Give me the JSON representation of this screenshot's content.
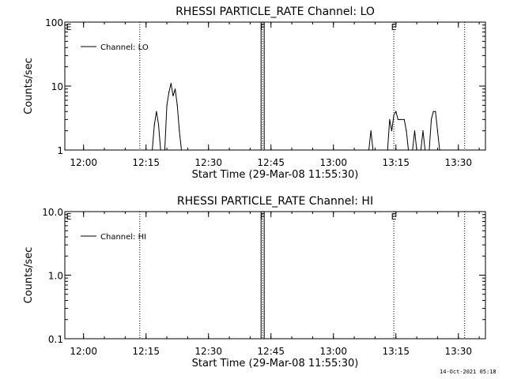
{
  "footer": {
    "timestamp": "14-Oct-2021 05:18"
  },
  "chart_data": [
    {
      "type": "line",
      "title": "RHESSI PARTICLE_RATE Channel: LO",
      "xlabel": "Start Time (29-Mar-08 11:55:30)",
      "ylabel": "Counts/sec",
      "yscale": "log",
      "xlim": [
        "11:55:30",
        "13:36:30"
      ],
      "ylim": [
        1,
        100
      ],
      "x_ticks": [
        "12:00",
        "12:15",
        "12:30",
        "12:45",
        "13:00",
        "13:15",
        "13:30"
      ],
      "y_ticks": [
        "1",
        "10",
        "100"
      ],
      "legend": {
        "position": "top-left",
        "entries": [
          "Channel: LO"
        ]
      },
      "series": [
        {
          "name": "Channel: LO",
          "points": [
            [
              "12:16:30",
              1
            ],
            [
              "12:17:00",
              2.5
            ],
            [
              "12:17:30",
              4
            ],
            [
              "12:18:00",
              2.5
            ],
            [
              "12:18:30",
              1
            ],
            [
              "12:19:30",
              1
            ],
            [
              "12:20:00",
              5
            ],
            [
              "12:20:30",
              8
            ],
            [
              "12:21:00",
              11
            ],
            [
              "12:21:30",
              7
            ],
            [
              "12:22:00",
              9
            ],
            [
              "12:22:30",
              5
            ],
            [
              "12:23:00",
              2
            ],
            [
              "12:23:30",
              1
            ],
            [
              "13:08:30",
              1
            ],
            [
              "13:09:00",
              2
            ],
            [
              "13:09:30",
              1
            ],
            [
              "13:13:00",
              1
            ],
            [
              "13:13:30",
              3
            ],
            [
              "13:14:00",
              2
            ],
            [
              "13:14:30",
              3.5
            ],
            [
              "13:15:00",
              4
            ],
            [
              "13:15:30",
              3
            ],
            [
              "13:16:00",
              3
            ],
            [
              "13:17:00",
              3
            ],
            [
              "13:17:30",
              2
            ],
            [
              "13:18:00",
              1
            ],
            [
              "13:19:00",
              1
            ],
            [
              "13:19:30",
              2
            ],
            [
              "13:20:00",
              1
            ],
            [
              "13:21:00",
              1
            ],
            [
              "13:21:30",
              2
            ],
            [
              "13:22:00",
              1
            ],
            [
              "13:23:00",
              1
            ],
            [
              "13:23:30",
              3
            ],
            [
              "13:24:00",
              4
            ],
            [
              "13:24:30",
              4
            ],
            [
              "13:25:00",
              2
            ],
            [
              "13:25:30",
              1
            ]
          ]
        }
      ],
      "markers": [
        {
          "time": "12:13:30",
          "label": ""
        },
        {
          "time": "12:43:00",
          "label": "F"
        },
        {
          "time": "13:14:30",
          "label": "E"
        },
        {
          "time": "13:31:30",
          "label": ""
        }
      ],
      "edge_label": "E"
    },
    {
      "type": "line",
      "title": "RHESSI PARTICLE_RATE Channel: HI",
      "xlabel": "Start Time (29-Mar-08 11:55:30)",
      "ylabel": "Counts/sec",
      "yscale": "log",
      "xlim": [
        "11:55:30",
        "13:36:30"
      ],
      "ylim": [
        0.1,
        10
      ],
      "x_ticks": [
        "12:00",
        "12:15",
        "12:30",
        "12:45",
        "13:00",
        "13:15",
        "13:30"
      ],
      "y_ticks": [
        "0.1",
        "1.0",
        "10.0"
      ],
      "legend": {
        "position": "top-left",
        "entries": [
          "Channel: HI"
        ]
      },
      "series": [
        {
          "name": "Channel: HI",
          "points": []
        }
      ],
      "markers": [
        {
          "time": "12:13:30",
          "label": ""
        },
        {
          "time": "12:43:00",
          "label": "F"
        },
        {
          "time": "13:14:30",
          "label": "E"
        },
        {
          "time": "13:31:30",
          "label": ""
        }
      ],
      "edge_label": "E"
    }
  ]
}
